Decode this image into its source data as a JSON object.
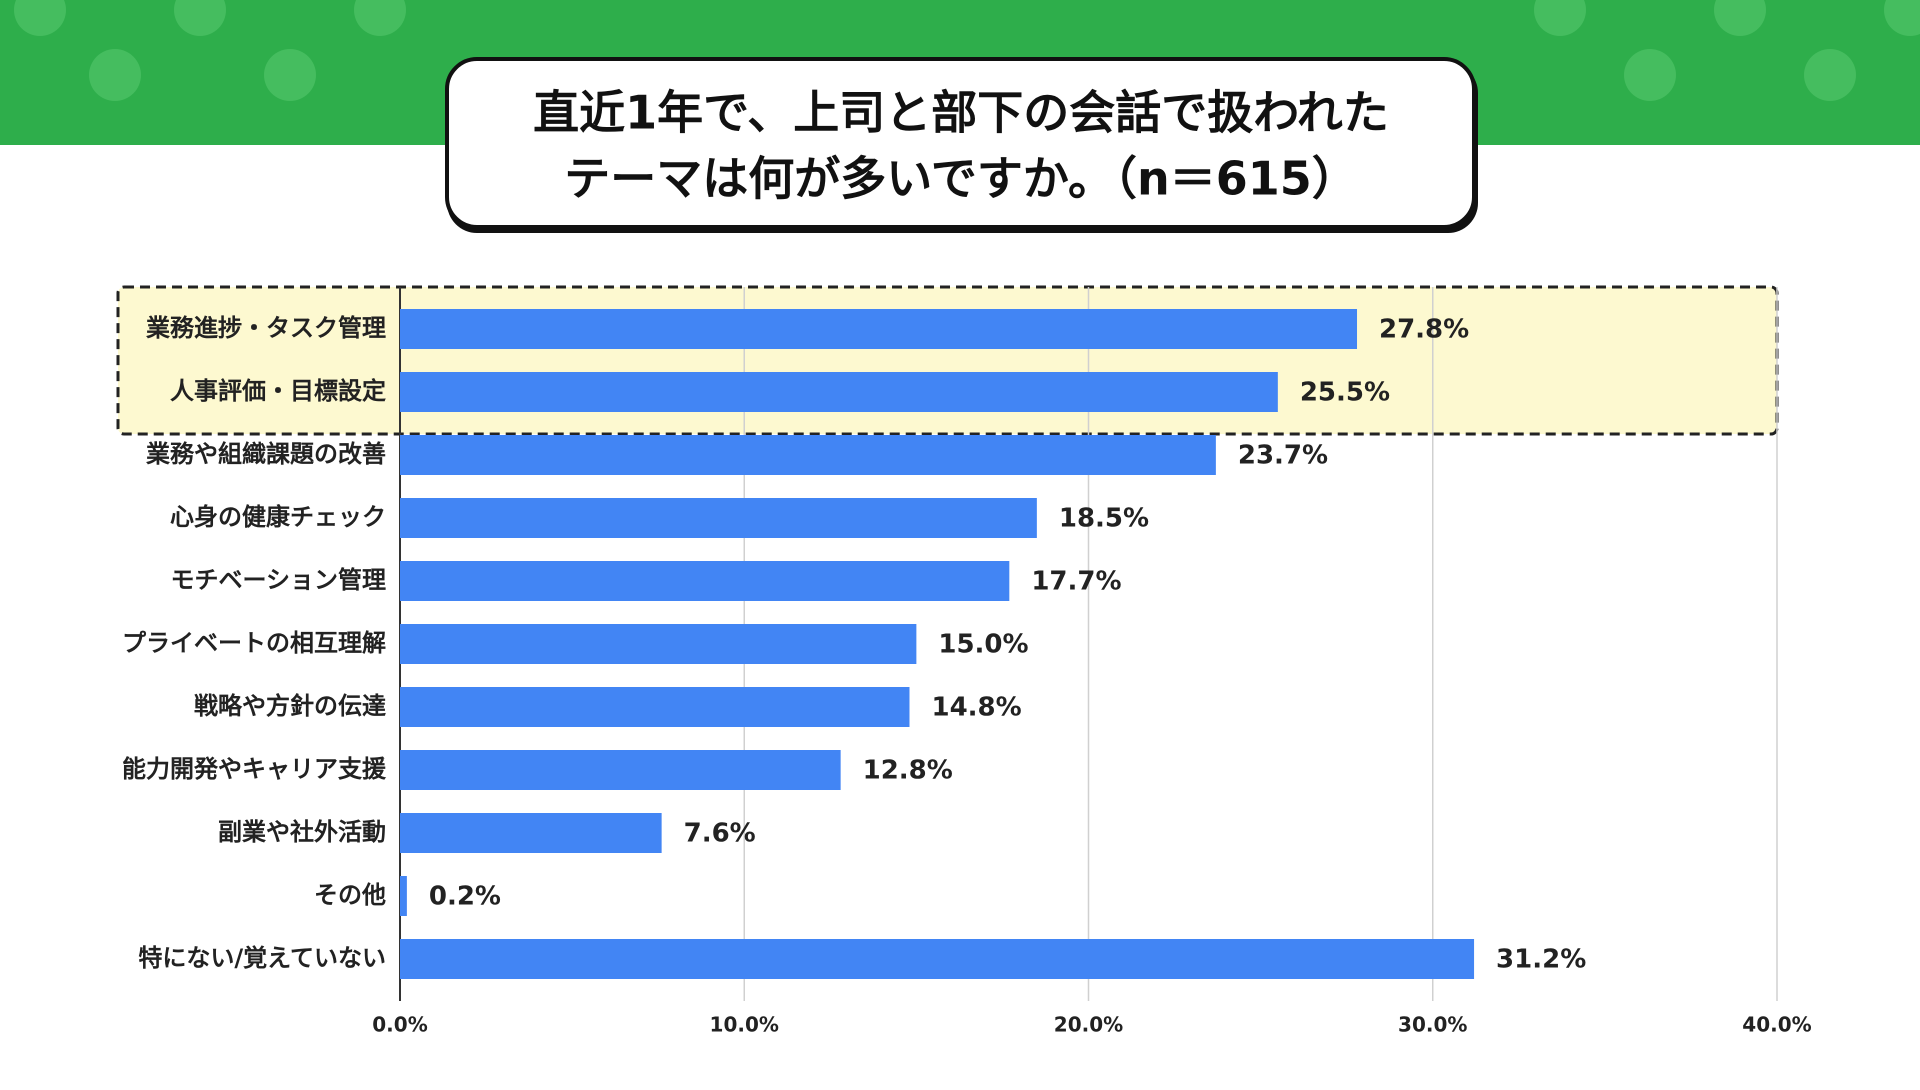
{
  "chart_data": {
    "type": "barh",
    "title": [
      "直近1年で、上司と部下の会話で扱われた",
      "テーマは何が多いですか。（n＝615）"
    ],
    "categories": [
      "業務進捗・タスク管理",
      "人事評価・目標設定",
      "業務や組織課題の改善",
      "心身の健康チェック",
      "モチベーション管理",
      "プライベートの相互理解",
      "戦略や方針の伝達",
      "能力開発やキャリア支援",
      "副業や社外活動",
      "その他",
      "特にない/覚えていない"
    ],
    "values": [
      27.8,
      25.5,
      23.7,
      18.5,
      17.7,
      15.0,
      14.8,
      12.8,
      7.6,
      0.2,
      31.2
    ],
    "value_labels": [
      "27.8%",
      "25.5%",
      "23.7%",
      "18.5%",
      "17.7%",
      "15.0%",
      "14.8%",
      "12.8%",
      "7.6%",
      "0.2%",
      "31.2%"
    ],
    "color": "#4285f4",
    "xlim": [
      0,
      40
    ],
    "xticks": [
      {
        "value": 0,
        "label": "0.0%"
      },
      {
        "value": 10,
        "label": "10.0%"
      },
      {
        "value": 20,
        "label": "20.0%"
      },
      {
        "value": 30,
        "label": "30.0%"
      },
      {
        "value": 40,
        "label": "40.0%"
      }
    ],
    "grid": true
  }
}
